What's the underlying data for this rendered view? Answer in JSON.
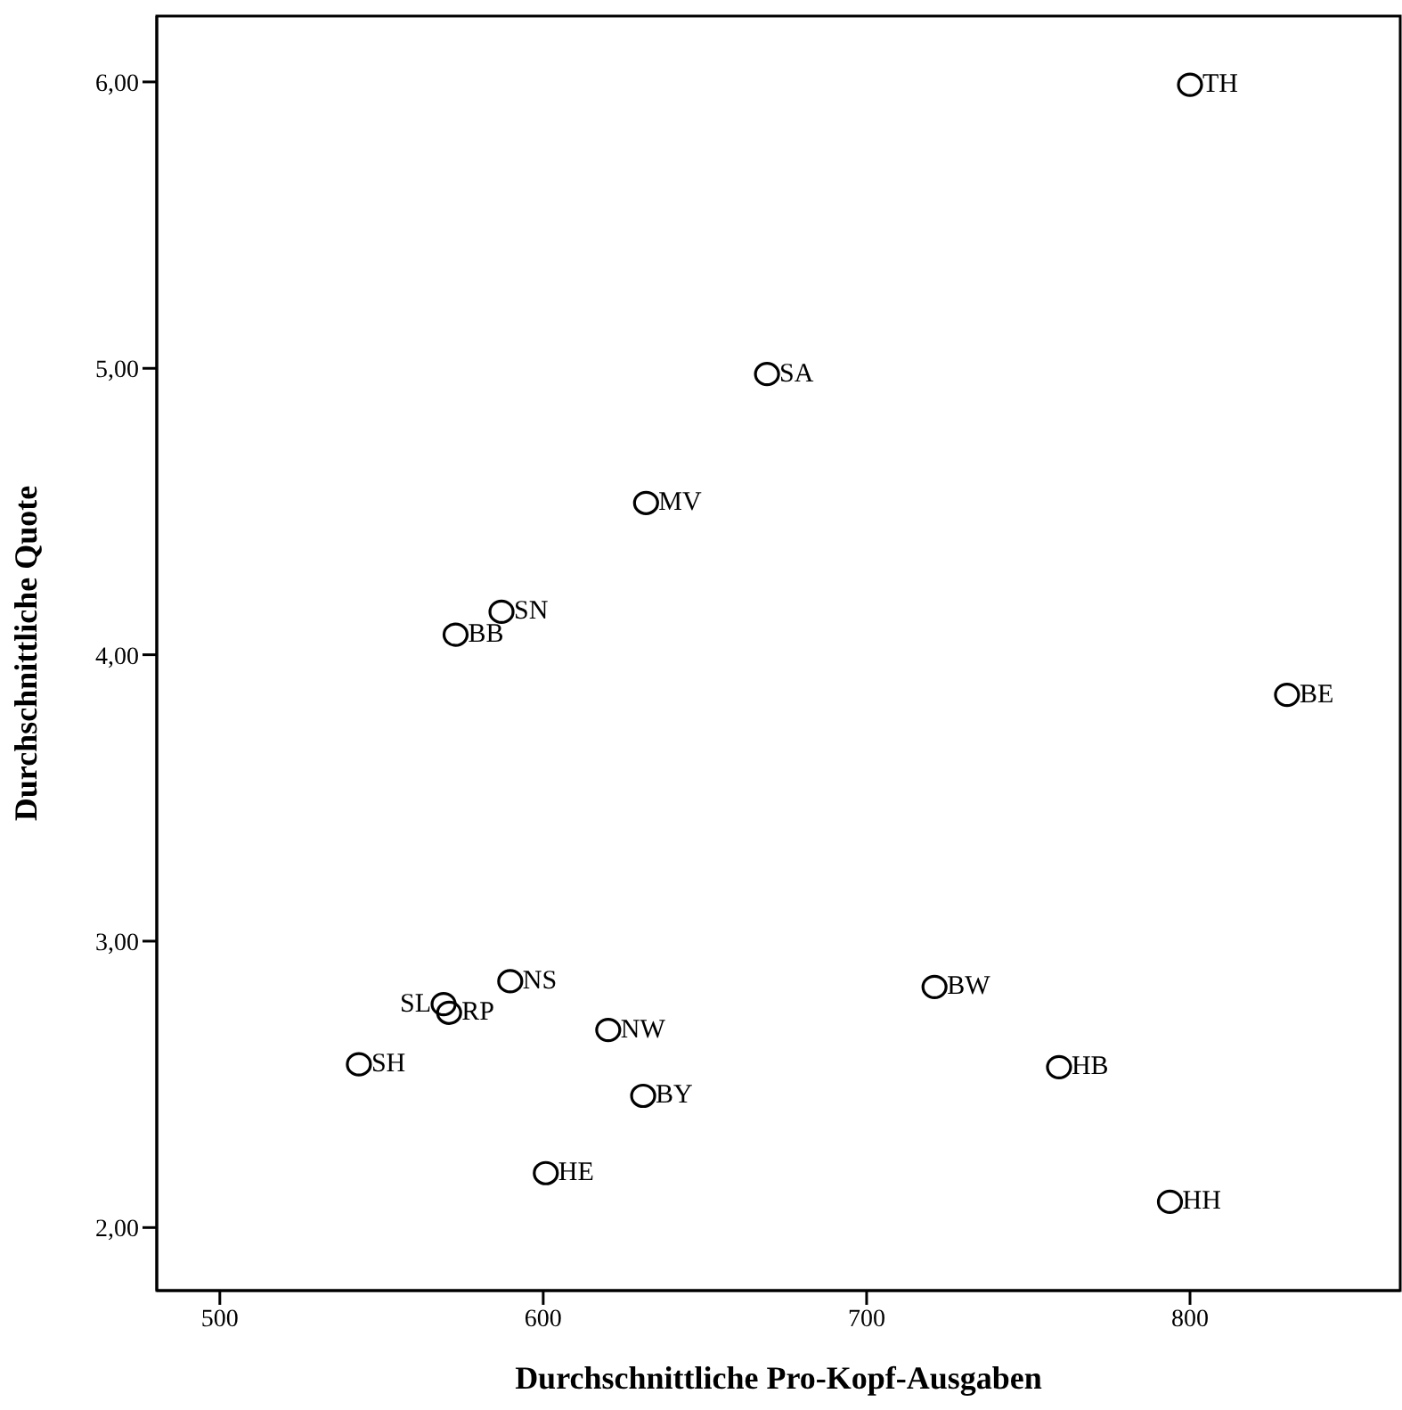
{
  "chart_data": {
    "type": "scatter",
    "xlabel": "Durchschnittliche Pro-Kopf-Ausgaben",
    "ylabel": "Durchschnittliche Quote",
    "x": [
      800,
      669.2,
      631.8,
      587.1,
      572.9,
      830,
      589.8,
      569.2,
      570.9,
      543,
      620.1,
      630.9,
      600.8,
      721,
      759.5,
      793.8
    ],
    "values": [
      5.99,
      4.98,
      4.53,
      4.15,
      4.07,
      3.86,
      2.86,
      2.78,
      2.75,
      2.57,
      2.69,
      2.46,
      2.19,
      2.84,
      2.56,
      2.09
    ],
    "color": "#000000",
    "marker": "circle",
    "annotations": [
      {
        "text": "TH",
        "x": 800,
        "y": 5.99
      },
      {
        "text": "SA",
        "x": 669.2,
        "y": 4.98
      },
      {
        "text": "MV",
        "x": 631.8,
        "y": 4.53
      },
      {
        "text": "SN",
        "x": 587.1,
        "y": 4.15
      },
      {
        "text": "BB",
        "x": 572.9,
        "y": 4.07
      },
      {
        "text": "BE",
        "x": 830,
        "y": 3.86
      },
      {
        "text": "NS",
        "x": 589.8,
        "y": 2.86
      },
      {
        "text": "SL",
        "x": 569.2,
        "y": 2.78
      },
      {
        "text": "RP",
        "x": 570.9,
        "y": 2.75
      },
      {
        "text": "SH",
        "x": 543,
        "y": 2.57
      },
      {
        "text": "NW",
        "x": 620.1,
        "y": 2.69
      },
      {
        "text": "BY",
        "x": 630.9,
        "y": 2.46
      },
      {
        "text": "HE",
        "x": 600.8,
        "y": 2.19
      },
      {
        "text": "BW",
        "x": 721,
        "y": 2.84
      },
      {
        "text": "HB",
        "x": 759.5,
        "y": 2.56
      },
      {
        "text": "HH",
        "x": 793.8,
        "y": 2.09
      }
    ],
    "xlim": [
      480.5,
      865
    ],
    "ylim": [
      1.78,
      6.23
    ],
    "xticks": [
      500,
      600,
      700,
      800
    ],
    "yticks": [
      {
        "value": 2,
        "label": "2,00"
      },
      {
        "value": 3,
        "label": "3,00"
      },
      {
        "value": 4,
        "label": "4,00"
      },
      {
        "value": 5,
        "label": "5,00"
      },
      {
        "value": 6,
        "label": "6,00"
      }
    ],
    "grid": false
  }
}
